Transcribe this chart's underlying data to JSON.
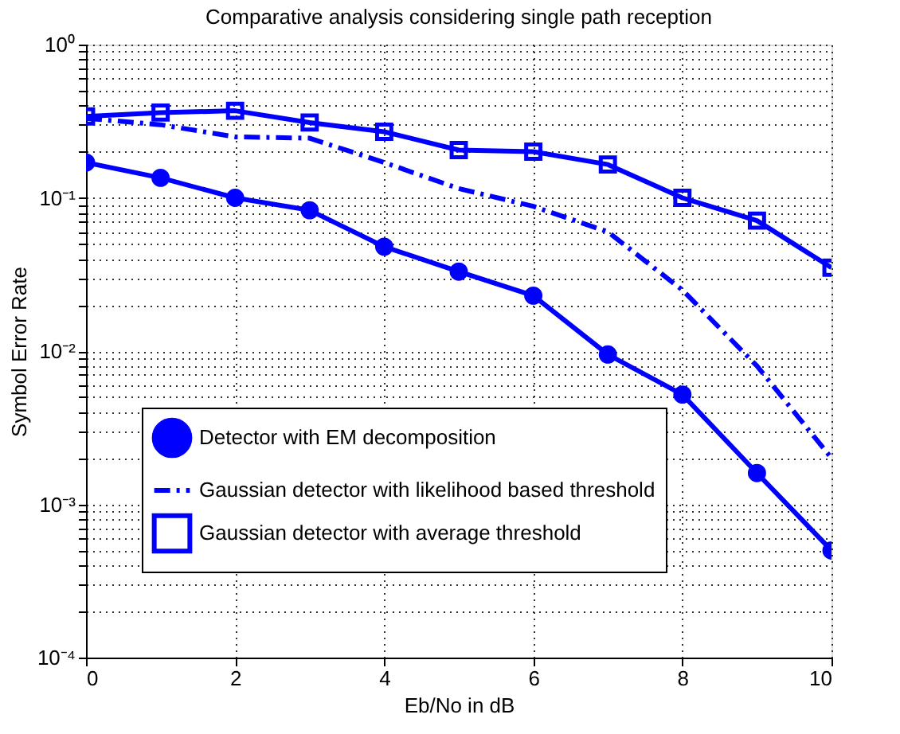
{
  "chart_data": {
    "type": "line",
    "title": "Comparative analysis considering single path reception",
    "xlabel": "Eb/No in dB",
    "ylabel": "Symbol Error Rate",
    "x": [
      0,
      1,
      2,
      3,
      4,
      5,
      6,
      7,
      8,
      9,
      10
    ],
    "series": [
      {
        "name": "Detector with EM decomposition",
        "color": "#0000ff",
        "marker": "circle",
        "line_style": "solid",
        "values": [
          0.17,
          0.135,
          0.1,
          0.083,
          0.048,
          0.033,
          0.023,
          0.0095,
          0.0052,
          0.0016,
          0.0005
        ]
      },
      {
        "name": "Gaussian detector with likelihood based threshold",
        "color": "#0000ff",
        "marker": "none",
        "line_style": "dashdot",
        "values": [
          0.33,
          0.3,
          0.25,
          0.245,
          0.17,
          0.115,
          0.088,
          0.06,
          0.025,
          0.008,
          0.002
        ]
      },
      {
        "name": "Gaussian detector with average threshold",
        "color": "#0000ff",
        "marker": "square",
        "line_style": "solid",
        "values": [
          0.34,
          0.36,
          0.37,
          0.31,
          0.27,
          0.205,
          0.2,
          0.165,
          0.1,
          0.071,
          0.035
        ]
      }
    ],
    "xlim": [
      0,
      10
    ],
    "xticks": [
      0,
      2,
      4,
      6,
      8,
      10
    ],
    "ylim": [
      0.0001,
      1
    ],
    "log": true,
    "yticks": [
      {
        "value": 0.0001,
        "label": "10⁻⁴"
      },
      {
        "value": 0.0002,
        "label": null
      },
      {
        "value": 0.0003,
        "label": null
      },
      {
        "value": 0.0004,
        "label": null
      },
      {
        "value": 0.0005,
        "label": null
      },
      {
        "value": 0.0006,
        "label": null
      },
      {
        "value": 0.0007,
        "label": null
      },
      {
        "value": 0.0008,
        "label": null
      },
      {
        "value": 0.0009,
        "label": null
      },
      {
        "value": 0.001,
        "label": "10⁻³"
      },
      {
        "value": 0.002,
        "label": null
      },
      {
        "value": 0.003,
        "label": null
      },
      {
        "value": 0.004,
        "label": null
      },
      {
        "value": 0.005,
        "label": null
      },
      {
        "value": 0.006,
        "label": null
      },
      {
        "value": 0.007,
        "label": null
      },
      {
        "value": 0.008,
        "label": null
      },
      {
        "value": 0.009,
        "label": null
      },
      {
        "value": 0.01,
        "label": "10⁻²"
      },
      {
        "value": 0.02,
        "label": null
      },
      {
        "value": 0.03,
        "label": null
      },
      {
        "value": 0.04,
        "label": null
      },
      {
        "value": 0.05,
        "label": null
      },
      {
        "value": 0.06,
        "label": null
      },
      {
        "value": 0.07,
        "label": null
      },
      {
        "value": 0.08,
        "label": null
      },
      {
        "value": 0.09,
        "label": null
      },
      {
        "value": 0.1,
        "label": "10⁻¹"
      },
      {
        "value": 0.2,
        "label": null
      },
      {
        "value": 0.3,
        "label": null
      },
      {
        "value": 0.4,
        "label": null
      },
      {
        "value": 0.5,
        "label": null
      },
      {
        "value": 0.6,
        "label": null
      },
      {
        "value": 0.7,
        "label": null
      },
      {
        "value": 0.8,
        "label": null
      },
      {
        "value": 0.9,
        "label": null
      },
      {
        "value": 1,
        "label": "10⁰"
      }
    ],
    "grid": true,
    "legend": "bottom left"
  }
}
